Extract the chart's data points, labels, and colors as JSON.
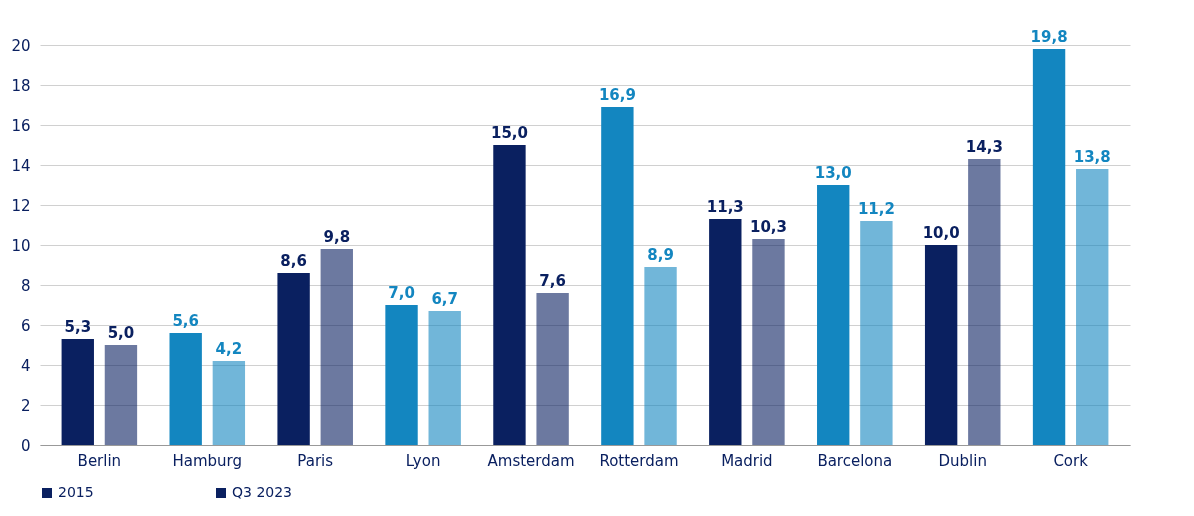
{
  "chart_data": {
    "type": "bar",
    "categories": [
      "Berlin",
      "Hamburg",
      "Paris",
      "Lyon",
      "Amsterdam",
      "Rotterdam",
      "Madrid",
      "Barcelona",
      "Dublin",
      "Cork"
    ],
    "series": [
      {
        "name": "2015",
        "color": "#0a2060",
        "colors": [
          "#0a2060",
          "#1386c0",
          "#0a2060",
          "#1386c0",
          "#0a2060",
          "#1386c0",
          "#0a2060",
          "#1386c0",
          "#0a2060",
          "#1386c0"
        ],
        "values": [
          5.3,
          5.6,
          8.6,
          7.0,
          15.0,
          16.9,
          11.3,
          13.0,
          10.0,
          19.8
        ],
        "value_labels": [
          "5,3",
          "5,6",
          "8,6",
          "7,0",
          "15,0",
          "16,9",
          "11,3",
          "13,0",
          "10,0",
          "19,8"
        ]
      },
      {
        "name": "Q3 2023",
        "color": "#0a2060",
        "colors": [
          "#0a2060",
          "#1386c0",
          "#0a2060",
          "#1386c0",
          "#0a2060",
          "#1386c0",
          "#0a2060",
          "#1386c0",
          "#0a2060",
          "#1386c0"
        ],
        "values": [
          5.0,
          4.2,
          9.8,
          6.7,
          7.6,
          8.9,
          10.3,
          11.2,
          14.3,
          13.8
        ],
        "value_labels": [
          "5,0",
          "4,2",
          "9,8",
          "6,7",
          "7,6",
          "8,9",
          "10,3",
          "11,2",
          "14,3",
          "13,8"
        ]
      }
    ],
    "ylim": [
      0,
      20
    ],
    "yticks": [
      0,
      2,
      4,
      6,
      8,
      10,
      12,
      14,
      16,
      18,
      20
    ],
    "grid": "y",
    "legend": "bottom"
  }
}
